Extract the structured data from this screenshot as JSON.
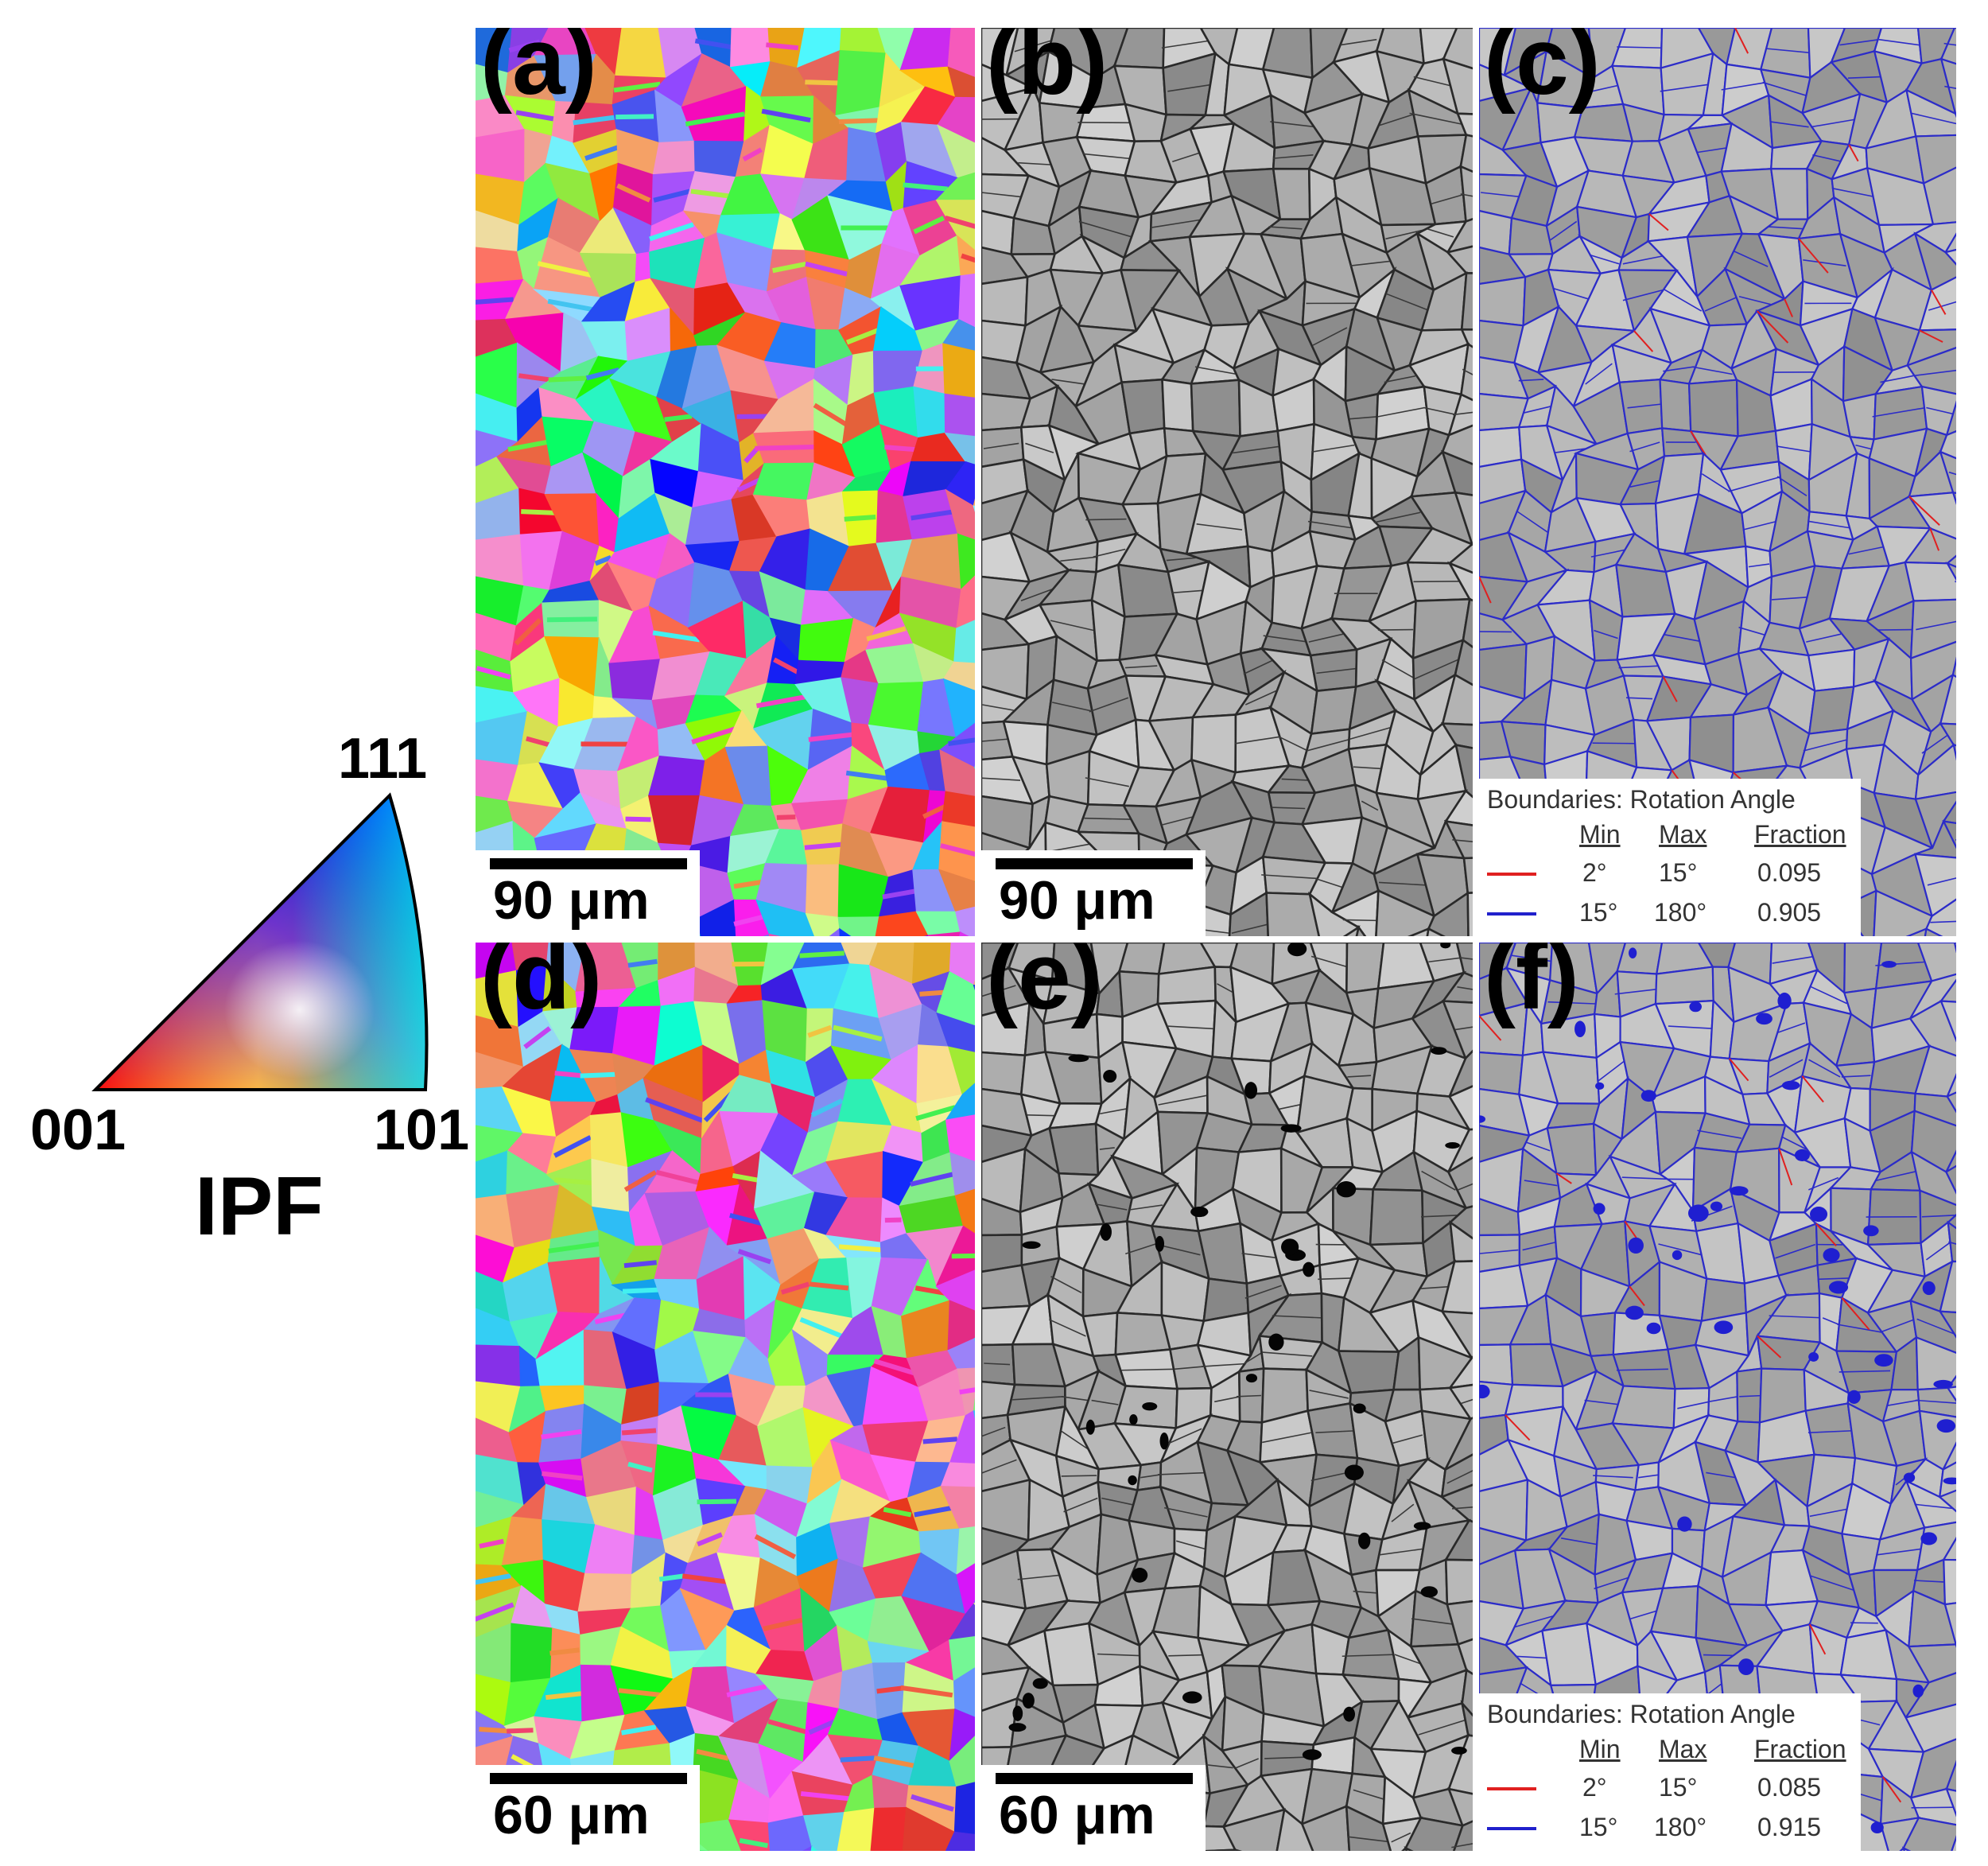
{
  "figure": {
    "ipf_key": {
      "corner_111": "111",
      "corner_001": "001",
      "corner_101": "101",
      "caption": "IPF",
      "colors": {
        "c001": "#ff0000",
        "c101": "#00ff00",
        "c111": "#0000ff"
      }
    },
    "panels": [
      {
        "id": "a",
        "label": "(a)",
        "type": "ipf-map",
        "scale": "90 μm"
      },
      {
        "id": "b",
        "label": "(b)",
        "type": "band-contrast",
        "scale": "90 μm"
      },
      {
        "id": "c",
        "label": "(c)",
        "type": "boundary-map"
      },
      {
        "id": "d",
        "label": "(d)",
        "type": "ipf-map",
        "scale": "60 μm"
      },
      {
        "id": "e",
        "label": "(e)",
        "type": "band-contrast",
        "scale": "60 μm"
      },
      {
        "id": "f",
        "label": "(f)",
        "type": "boundary-map"
      }
    ],
    "legends": {
      "c": {
        "title": "Boundaries: Rotation Angle",
        "headers": {
          "min": "Min",
          "max": "Max",
          "fraction": "Fraction"
        },
        "rows": [
          {
            "color": "#e02020",
            "min": "2°",
            "max": "15°",
            "fraction": "0.095"
          },
          {
            "color": "#2020cc",
            "min": "15°",
            "max": "180°",
            "fraction": "0.905"
          }
        ]
      },
      "f": {
        "title": "Boundaries: Rotation Angle",
        "headers": {
          "min": "Min",
          "max": "Max",
          "fraction": "Fraction"
        },
        "rows": [
          {
            "color": "#e02020",
            "min": "2°",
            "max": "15°",
            "fraction": "0.085"
          },
          {
            "color": "#2020cc",
            "min": "15°",
            "max": "180°",
            "fraction": "0.915"
          }
        ]
      }
    }
  }
}
